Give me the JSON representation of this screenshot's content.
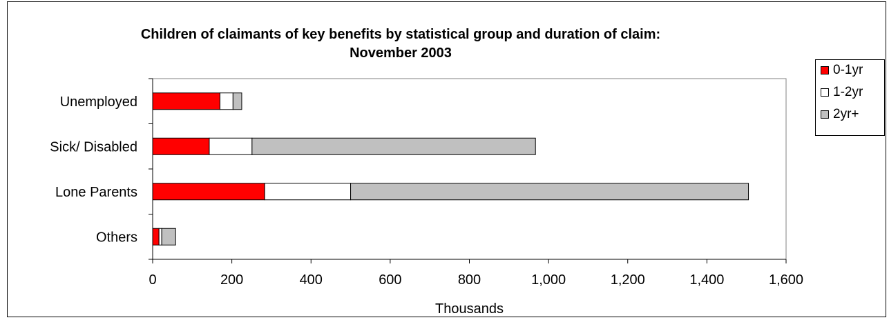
{
  "chart_data": {
    "type": "bar",
    "orientation": "horizontal",
    "stacked": true,
    "title": "Children of claimants of key benefits by statistical group and duration of claim:",
    "subtitle": "November 2003",
    "xlabel": "Thousands",
    "ylabel": "",
    "xlim": [
      0,
      1600
    ],
    "xticks": [
      "0",
      "200",
      "400",
      "600",
      "800",
      "1,000",
      "1,200",
      "1,400",
      "1,600"
    ],
    "xtick_values": [
      0,
      200,
      400,
      600,
      800,
      1000,
      1200,
      1400,
      1600
    ],
    "categories": [
      "Unemployed",
      "Sick/ Disabled",
      "Lone Parents",
      "Others"
    ],
    "series": [
      {
        "name": "0-1yr",
        "color": "#ff0000",
        "values": [
          170,
          143,
          283,
          16
        ]
      },
      {
        "name": "1-2yr",
        "color": "#ffffff",
        "values": [
          33,
          108,
          217,
          7
        ]
      },
      {
        "name": "2yr+",
        "color": "#c0c0c0",
        "values": [
          22,
          716,
          1005,
          35
        ]
      }
    ],
    "grid": false,
    "legend_position": "right"
  }
}
